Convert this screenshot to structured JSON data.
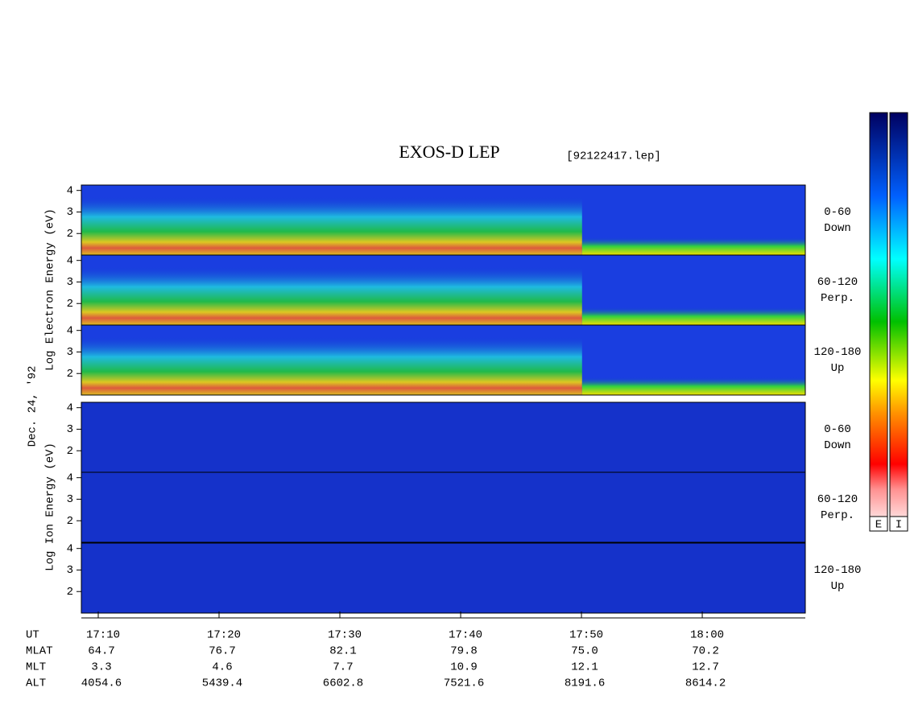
{
  "header": {
    "title": "EXOS-D LEP",
    "file": "[92122417.lep]"
  },
  "spectrogram": {
    "electron_axis_label": "Log Electron Energy (eV)",
    "date": "Dec. 24, '92",
    "ion_axis_label": "Log Ion Energy (eV)",
    "ylim": [
      1,
      4.25
    ],
    "yticks": [
      2,
      3,
      4
    ],
    "xlim": [
      8.6,
      68.53
    ],
    "xticks": [
      {
        "value": 10,
        "label": "17:10"
      },
      {
        "value": 20,
        "label": "17:20"
      },
      {
        "value": 30,
        "label": "17:30"
      },
      {
        "value": 40,
        "label": "17:40"
      },
      {
        "value": 50,
        "label": "17:50"
      },
      {
        "value": 60,
        "label": "18:00"
      }
    ],
    "panels": [
      {
        "angle": "0-60",
        "direction": "Down"
      },
      {
        "angle": "60-120",
        "direction": "Perp."
      },
      {
        "angle": "120-180",
        "direction": "Up"
      },
      {
        "angle": "0-60",
        "direction": "Down"
      },
      {
        "angle": "60-120",
        "direction": "Perp."
      },
      {
        "angle": "120-180",
        "direction": "Up"
      }
    ],
    "colorbar_labels": [
      "E",
      "I"
    ]
  },
  "ephemeris": {
    "time_label": "UT",
    "rows": [
      {
        "name": "MLAT",
        "values": [
          "64.7",
          "76.7",
          "82.1",
          "79.8",
          "75.0",
          "70.2"
        ]
      },
      {
        "name": "MLT",
        "values": [
          "3.3",
          "4.6",
          "7.7",
          "10.9",
          "12.1",
          "12.7"
        ]
      },
      {
        "name": "ALT",
        "values": [
          "4054.6",
          "5439.4",
          "6602.8",
          "7521.6",
          "8191.6",
          "8614.2"
        ]
      }
    ]
  }
}
